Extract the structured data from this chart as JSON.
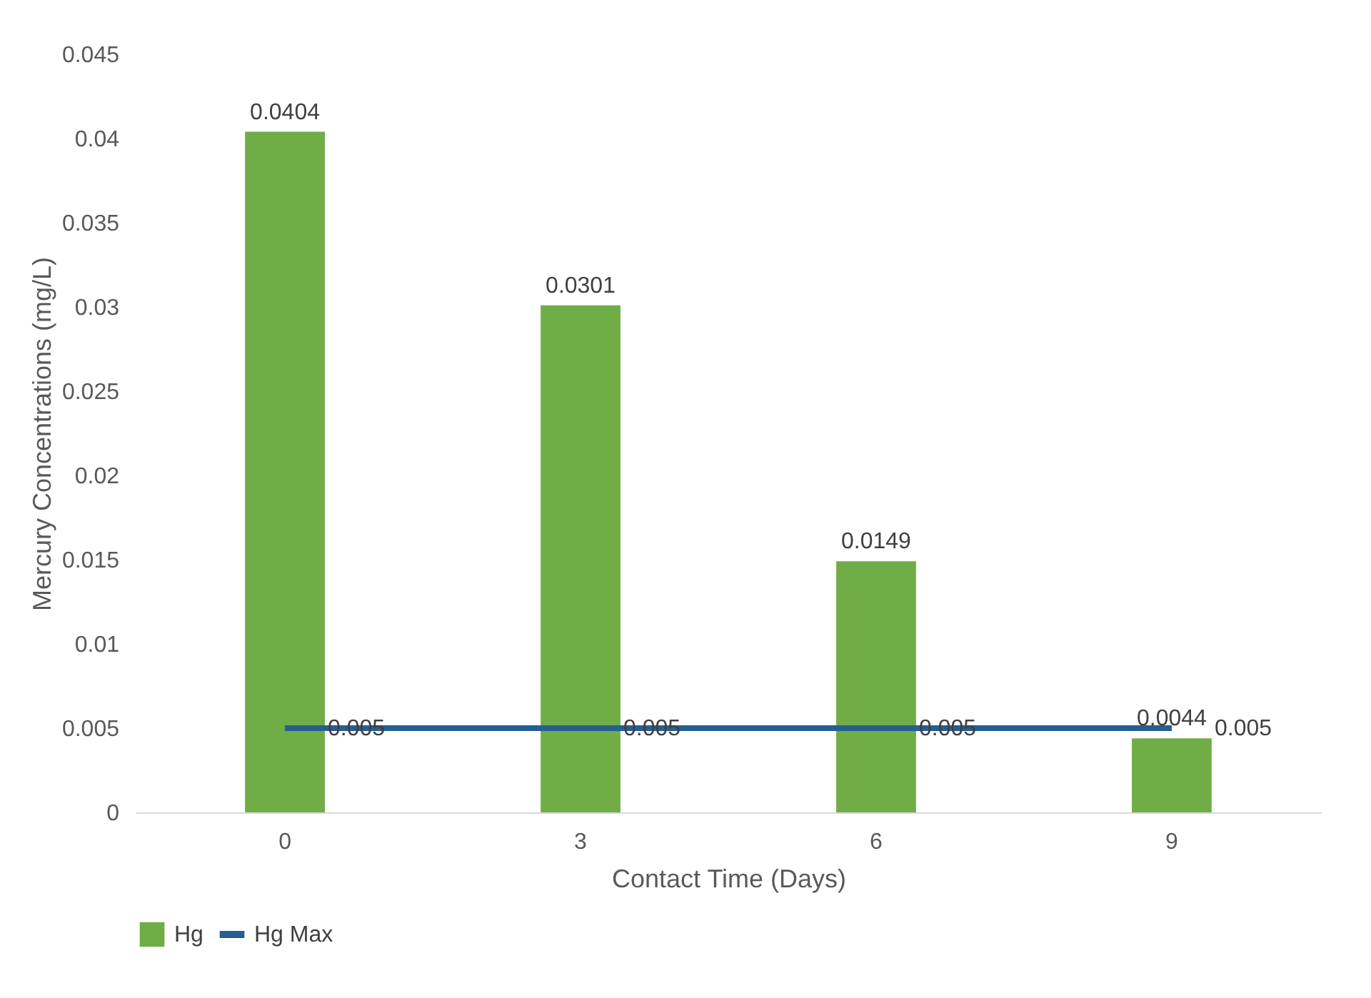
{
  "chart_data": {
    "type": "bar",
    "categories": [
      "0",
      "3",
      "6",
      "9"
    ],
    "xlabel": "Contact Time (Days)",
    "ylabel": "Mercury Concentrations (mg/L)",
    "series": [
      {
        "name": "Hg",
        "color": "#70ad47",
        "values": [
          0.0404,
          0.0301,
          0.0149,
          0.0044
        ]
      },
      {
        "name": "Hg Max",
        "type": "line",
        "color": "#255e91",
        "values": [
          0.005,
          0.005,
          0.005,
          0.005
        ]
      }
    ],
    "ylim": [
      0,
      0.045
    ],
    "yticks": [
      0,
      0.005,
      0.01,
      0.015,
      0.02,
      0.025,
      0.03,
      0.035,
      0.04,
      0.045
    ],
    "data_labels": true,
    "grid": false,
    "legend": "bottom"
  }
}
